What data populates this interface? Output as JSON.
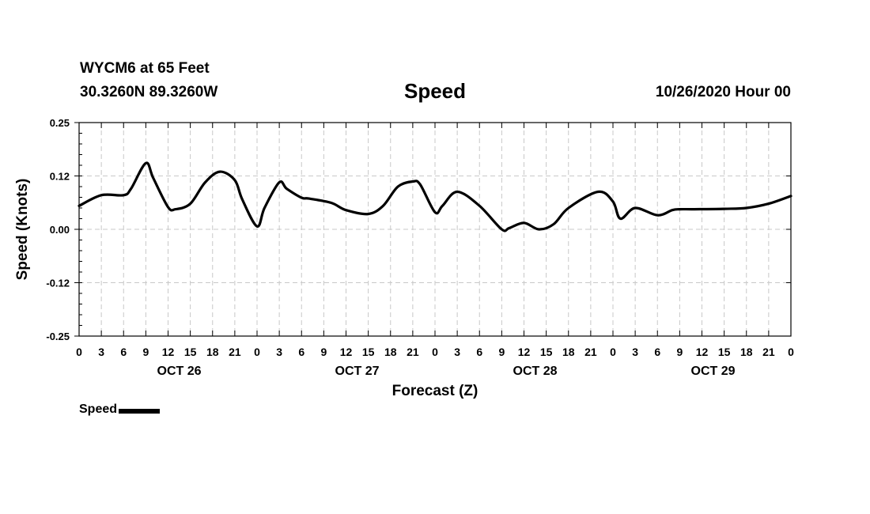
{
  "header": {
    "station": "WYCM6 at 65 Feet",
    "coords": "30.3260N 89.3260W",
    "title": "Speed",
    "run": "10/26/2020 Hour 00"
  },
  "legend": {
    "label": "Speed"
  },
  "chart_data": {
    "type": "line",
    "title": "Speed",
    "xlabel": "Forecast (Z)",
    "ylabel": "Speed (Knots)",
    "ylim": [
      -0.25,
      0.25
    ],
    "y_ticks": [
      "0.25",
      "0.12",
      "0.00",
      "-0.12",
      "-0.25"
    ],
    "xlim_hours": [
      0,
      96
    ],
    "hour_tick_labels": [
      "0",
      "3",
      "6",
      "9",
      "12",
      "15",
      "18",
      "21",
      "0",
      "3",
      "6",
      "9",
      "12",
      "15",
      "18",
      "21",
      "0",
      "3",
      "6",
      "9",
      "12",
      "15",
      "18",
      "21",
      "0",
      "3",
      "6",
      "9",
      "12",
      "15",
      "18",
      "21",
      "0"
    ],
    "day_labels": [
      "OCT 26",
      "OCT 27",
      "OCT 28",
      "OCT 29"
    ],
    "grid": true,
    "legend_position": "bottom-left",
    "line_color": "#000000",
    "series": [
      {
        "name": "Speed",
        "x": [
          0,
          3,
          6,
          7,
          9,
          10,
          12,
          13,
          15,
          17,
          19,
          21,
          22,
          24,
          25,
          27,
          28,
          30,
          31,
          34,
          36,
          39,
          41,
          43,
          45,
          46,
          48,
          49,
          51,
          54,
          57,
          58,
          60,
          62,
          64,
          66,
          70,
          72,
          73,
          75,
          78,
          80,
          81,
          83,
          87,
          90,
          93,
          96
        ],
        "y": [
          0.055,
          0.08,
          0.08,
          0.095,
          0.155,
          0.12,
          0.052,
          0.047,
          0.06,
          0.11,
          0.135,
          0.115,
          0.07,
          0.007,
          0.05,
          0.11,
          0.095,
          0.074,
          0.072,
          0.062,
          0.045,
          0.036,
          0.055,
          0.1,
          0.112,
          0.105,
          0.04,
          0.055,
          0.088,
          0.055,
          0.0,
          0.003,
          0.015,
          0.0,
          0.012,
          0.05,
          0.088,
          0.065,
          0.025,
          0.05,
          0.033,
          0.045,
          0.047,
          0.047,
          0.048,
          0.05,
          0.06,
          0.078
        ]
      }
    ]
  }
}
